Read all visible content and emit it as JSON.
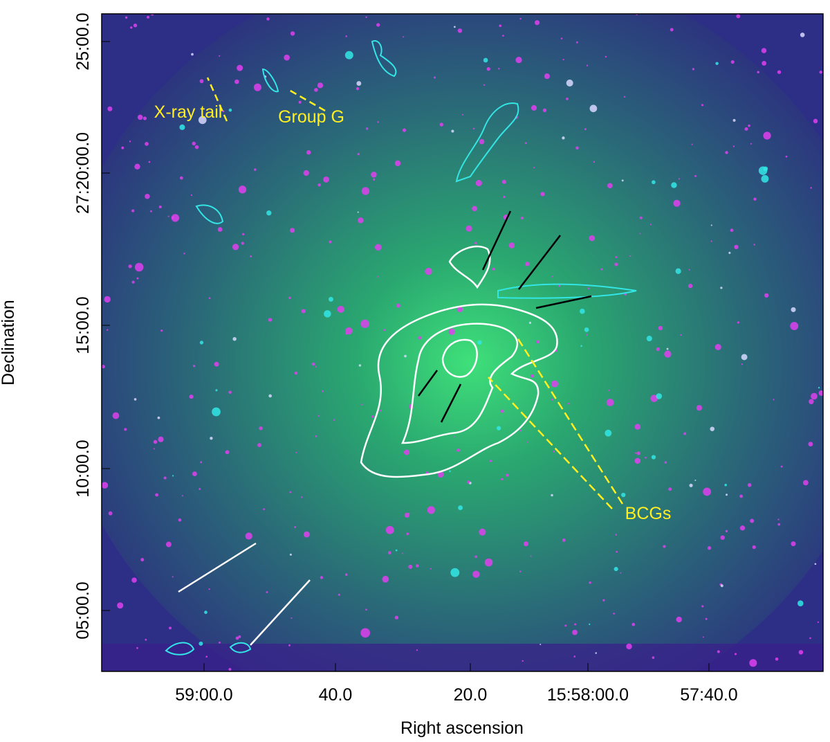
{
  "axes": {
    "x_label": "Right ascension",
    "y_label": "Declination",
    "x_ticks": [
      "59:00.0",
      "40.0",
      "20.0",
      "15:58:00.0",
      "57:40.0"
    ],
    "y_ticks": [
      "25:00.0",
      "27:20:00.0",
      "15:00.0",
      "10:00.0",
      "05:00.0"
    ]
  },
  "annotations": [
    "X-ray tail",
    "Group G",
    "BCGs"
  ]
}
